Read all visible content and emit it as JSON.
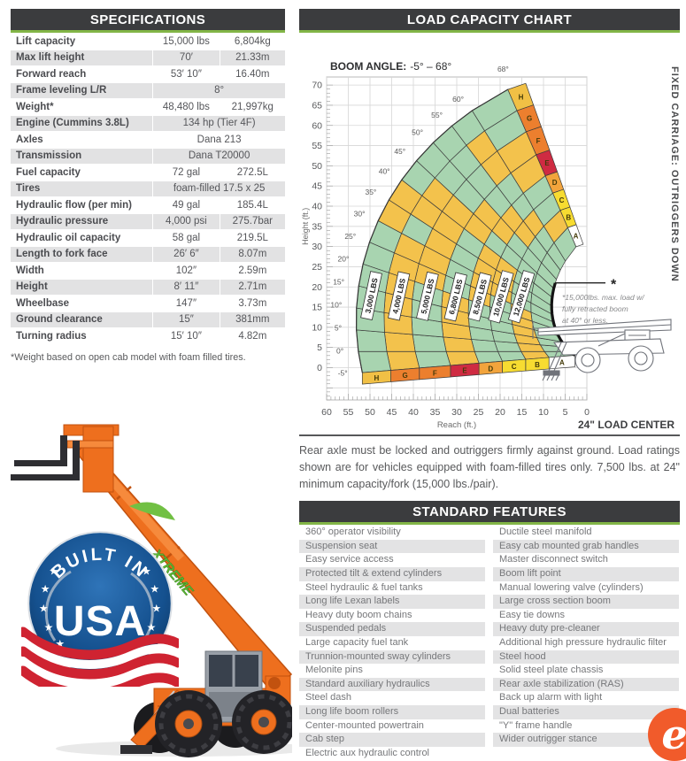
{
  "spec": {
    "title": "SPECIFICATIONS",
    "rows": [
      {
        "label": "Lift capacity",
        "imperial": "15,000 lbs",
        "metric": "6,804kg"
      },
      {
        "label": "Max lift height",
        "imperial": "70′",
        "metric": "21.33m"
      },
      {
        "label": "Forward reach",
        "imperial": "53′ 10″",
        "metric": "16.40m"
      },
      {
        "label": "Frame leveling L/R",
        "imperial": "8°",
        "metric": null
      },
      {
        "label": "Weight*",
        "imperial": "48,480 lbs",
        "metric": "21,997kg"
      },
      {
        "label": "Engine (Cummins 3.8L)",
        "imperial": "134 hp (Tier 4F)",
        "metric": null
      },
      {
        "label": "Axles",
        "imperial": "Dana 213",
        "metric": null
      },
      {
        "label": "Transmission",
        "imperial": "Dana T20000",
        "metric": null
      },
      {
        "label": "Fuel capacity",
        "imperial": "72 gal",
        "metric": "272.5L"
      },
      {
        "label": "Tires",
        "imperial": "foam-filled 17.5 x 25",
        "metric": null
      },
      {
        "label": "Hydraulic flow (per min)",
        "imperial": "49 gal",
        "metric": "185.4L"
      },
      {
        "label": "Hydraulic pressure",
        "imperial": "4,000 psi",
        "metric": "275.7bar"
      },
      {
        "label": "Hydraulic oil capacity",
        "imperial": "58 gal",
        "metric": "219.5L"
      },
      {
        "label": "Length to fork face",
        "imperial": "26′ 6″",
        "metric": "8.07m"
      },
      {
        "label": "Width",
        "imperial": "102″",
        "metric": "2.59m"
      },
      {
        "label": "Height",
        "imperial": "8′ 11″",
        "metric": "2.71m"
      },
      {
        "label": "Wheelbase",
        "imperial": "147″",
        "metric": "3.73m"
      },
      {
        "label": "Ground clearance",
        "imperial": "15″",
        "metric": "381mm"
      },
      {
        "label": "Turning radius",
        "imperial": "15′ 10″",
        "metric": "4.82m"
      }
    ],
    "footnote": "*Weight based on open cab model with foam filled tires."
  },
  "badge": {
    "top": "BUILT IN",
    "main": "USA",
    "star_count": 12
  },
  "machine": {
    "decal": "XTREME"
  },
  "chart_data": {
    "type": "area",
    "title": "LOAD CAPACITY CHART",
    "subtitle_label": "BOOM ANGLE:",
    "subtitle_value": "-5° – 68°",
    "xlabel": "Reach (ft.)",
    "ylabel": "Height (ft.)",
    "x_ticks": [
      60,
      55,
      50,
      45,
      40,
      35,
      30,
      25,
      20,
      15,
      10,
      5,
      0
    ],
    "y_ticks": [
      0,
      5,
      10,
      15,
      20,
      25,
      30,
      35,
      40,
      45,
      50,
      55,
      60,
      65,
      70
    ],
    "x_range_ft": [
      0,
      60
    ],
    "y_range_ft": [
      -8,
      72
    ],
    "boom_angles_deg": [
      -5,
      0,
      5,
      10,
      15,
      20,
      25,
      30,
      35,
      40,
      45,
      50,
      55,
      60,
      68
    ],
    "angle_labels": [
      "-5°",
      "0°",
      "5°",
      "10°",
      "15°",
      "20°",
      "25°",
      "30°",
      "35°",
      "40°",
      "45°",
      "50°",
      "55°",
      "60°",
      "68°"
    ],
    "pivot": {
      "reach_ft": -8,
      "height_ft": 4
    },
    "outer_radius_ft": {
      "at_minus5": 60,
      "at_68": 70
    },
    "extension_fractions": [
      0.18,
      0.28,
      0.37,
      0.46,
      0.55,
      0.66,
      0.78,
      0.89,
      1.0
    ],
    "extension_letters": [
      "A",
      "B",
      "C",
      "D",
      "E",
      "F",
      "G",
      "H"
    ],
    "rim_colors": [
      "#ffffff",
      "#f7dc31",
      "#f7dc31",
      "#f2a43c",
      "#cf2b42",
      "#ec7f2e",
      "#ec7f2e",
      "#f1c045"
    ],
    "capacities": [
      {
        "label": "3,000 LBS",
        "zone": "H"
      },
      {
        "label": "4,000 LBS",
        "zone": "G"
      },
      {
        "label": "5,000 LBS",
        "zone": "F"
      },
      {
        "label": "6,800 LBS",
        "zone": "E"
      },
      {
        "label": "8,500 LBS",
        "zone": "D"
      },
      {
        "label": "10,000 LBS",
        "zone": "C"
      },
      {
        "label": "12,000 LBS",
        "zone": "B"
      }
    ],
    "palette": {
      "g": "#a8d4b0",
      "y": "#f3c24c",
      "o": "#ec7f2e",
      "r": "#cf2b42"
    },
    "cell_colors": [
      "gggggggggggggg",
      "yyyyyygggggggy",
      "ggggggyyyggyyg",
      "gggggyyyygyygg",
      "yyyyyggggyyggy",
      "gggggyyyyyggyy",
      "yyyyyyygyyggyg",
      "gggggggyyggggg"
    ],
    "max_load_note_lines": [
      "*15,000lbs. max. load w/",
      "fully retracted boom",
      "at 40° or less."
    ],
    "max_load_marker": "*",
    "load_center_label": "24\" LOAD CENTER",
    "side_label": "FIXED CARRIAGE: OUTRIGGERS DOWN",
    "footer_note": "Rear axle must be locked and outriggers firmly against ground. Load ratings shown are for vehicles equipped with foam-filled tires only. 7,500 lbs. at 24\" minimum capacity/fork (15,000 lbs./pair)."
  },
  "features": {
    "title": "STANDARD FEATURES",
    "left": [
      "360° operator visibility",
      "Suspension seat",
      "Easy service access",
      "Protected tilt & extend cylinders",
      "Steel hydraulic & fuel tanks",
      "Long life Lexan labels",
      "Heavy duty boom chains",
      "Suspended pedals",
      "Large capacity fuel tank",
      "Trunnion-mounted sway cylinders",
      "Melonite pins",
      "Standard auxiliary hydraulics",
      "Steel dash",
      "Long life boom rollers",
      "Center-mounted powertrain",
      "Cab step",
      "Electric aux hydraulic control"
    ],
    "right": [
      "Ductile steel manifold",
      "Easy cab mounted grab handles",
      "Master disconnect switch",
      "Boom lift point",
      "Manual lowering valve (cylinders)",
      "Large cross section boom",
      "Easy tie downs",
      "Heavy duty pre-cleaner",
      "Additional high pressure hydraulic filter",
      "Steel hood",
      "Solid steel plate chassis",
      "Rear axle stabilization (RAS)",
      "Back up alarm with light",
      "Dual batteries",
      "\"Y\" frame handle",
      "Wider outrigger stance"
    ]
  },
  "elogo": {
    "letter": "e"
  }
}
